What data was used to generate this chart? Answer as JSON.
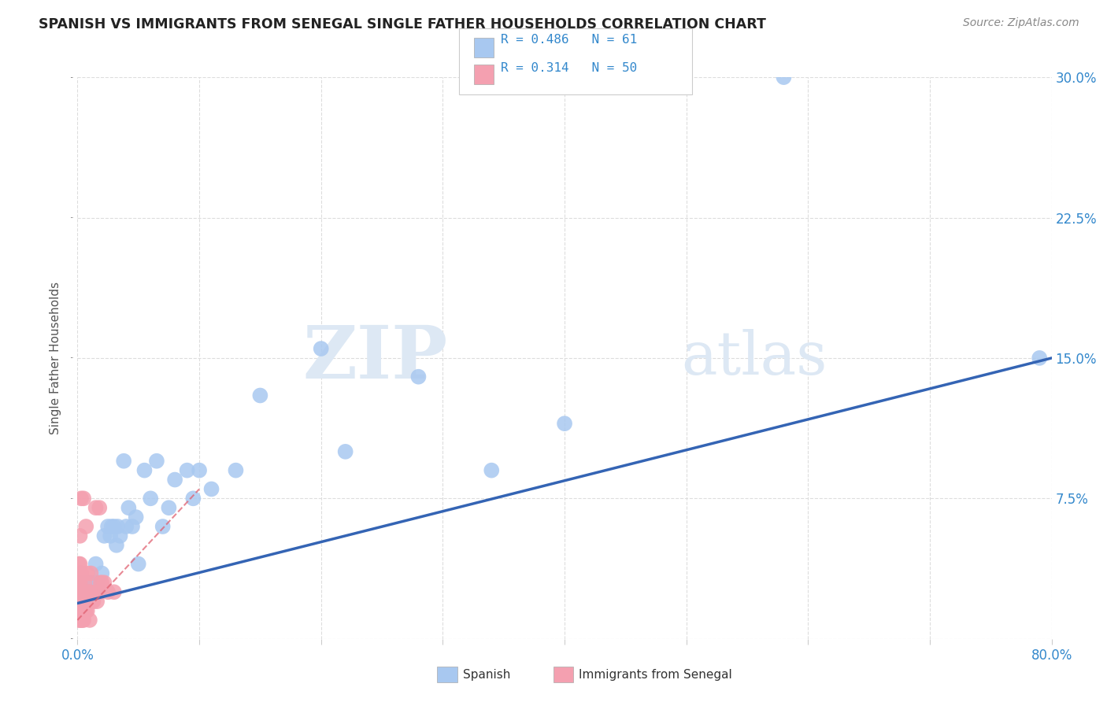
{
  "title": "SPANISH VS IMMIGRANTS FROM SENEGAL SINGLE FATHER HOUSEHOLDS CORRELATION CHART",
  "source": "Source: ZipAtlas.com",
  "ylabel": "Single Father Households",
  "xlim": [
    0.0,
    0.8
  ],
  "ylim": [
    0.0,
    0.3
  ],
  "xticks": [
    0.0,
    0.1,
    0.2,
    0.3,
    0.4,
    0.5,
    0.6,
    0.7,
    0.8
  ],
  "yticks": [
    0.0,
    0.075,
    0.15,
    0.225,
    0.3
  ],
  "xtick_labels": [
    "0.0%",
    "",
    "",
    "",
    "",
    "",
    "",
    "",
    "80.0%"
  ],
  "ytick_labels": [
    "",
    "7.5%",
    "15.0%",
    "22.5%",
    "30.0%"
  ],
  "spanish_R": 0.486,
  "spanish_N": 61,
  "senegal_R": 0.314,
  "senegal_N": 50,
  "spanish_color": "#a8c8f0",
  "senegal_color": "#f4a0b0",
  "spanish_line_color": "#3464b4",
  "senegal_line_color": "#e06070",
  "legend_color_blue": "#3388cc",
  "background_color": "#ffffff",
  "grid_color": "#dddddd",
  "watermark_zip": "ZIP",
  "watermark_atlas": "atlas",
  "spanish_x": [
    0.001,
    0.002,
    0.002,
    0.003,
    0.003,
    0.003,
    0.004,
    0.004,
    0.005,
    0.005,
    0.005,
    0.006,
    0.006,
    0.006,
    0.007,
    0.007,
    0.008,
    0.008,
    0.009,
    0.009,
    0.01,
    0.011,
    0.012,
    0.013,
    0.015,
    0.016,
    0.018,
    0.02,
    0.022,
    0.025,
    0.027,
    0.028,
    0.03,
    0.032,
    0.033,
    0.035,
    0.038,
    0.04,
    0.042,
    0.045,
    0.048,
    0.05,
    0.055,
    0.06,
    0.065,
    0.07,
    0.075,
    0.08,
    0.09,
    0.095,
    0.1,
    0.11,
    0.13,
    0.15,
    0.2,
    0.22,
    0.28,
    0.34,
    0.4,
    0.58,
    0.79
  ],
  "spanish_y": [
    0.02,
    0.02,
    0.025,
    0.02,
    0.03,
    0.03,
    0.025,
    0.03,
    0.02,
    0.025,
    0.025,
    0.02,
    0.025,
    0.03,
    0.025,
    0.03,
    0.025,
    0.03,
    0.025,
    0.03,
    0.025,
    0.025,
    0.03,
    0.025,
    0.04,
    0.03,
    0.025,
    0.035,
    0.055,
    0.06,
    0.055,
    0.06,
    0.06,
    0.05,
    0.06,
    0.055,
    0.095,
    0.06,
    0.07,
    0.06,
    0.065,
    0.04,
    0.09,
    0.075,
    0.095,
    0.06,
    0.07,
    0.085,
    0.09,
    0.075,
    0.09,
    0.08,
    0.09,
    0.13,
    0.155,
    0.1,
    0.14,
    0.09,
    0.115,
    0.3,
    0.15
  ],
  "senegal_x": [
    0.001,
    0.001,
    0.001,
    0.001,
    0.001,
    0.001,
    0.001,
    0.001,
    0.001,
    0.002,
    0.002,
    0.002,
    0.002,
    0.002,
    0.002,
    0.002,
    0.002,
    0.003,
    0.003,
    0.003,
    0.003,
    0.003,
    0.004,
    0.004,
    0.004,
    0.005,
    0.005,
    0.005,
    0.006,
    0.006,
    0.007,
    0.007,
    0.008,
    0.008,
    0.009,
    0.01,
    0.01,
    0.011,
    0.012,
    0.013,
    0.014,
    0.015,
    0.016,
    0.017,
    0.018,
    0.019,
    0.02,
    0.022,
    0.025,
    0.03
  ],
  "senegal_y": [
    0.01,
    0.015,
    0.02,
    0.02,
    0.025,
    0.025,
    0.03,
    0.035,
    0.04,
    0.01,
    0.015,
    0.02,
    0.025,
    0.03,
    0.035,
    0.04,
    0.055,
    0.01,
    0.015,
    0.02,
    0.035,
    0.075,
    0.01,
    0.015,
    0.025,
    0.01,
    0.015,
    0.075,
    0.015,
    0.03,
    0.015,
    0.06,
    0.015,
    0.035,
    0.025,
    0.01,
    0.025,
    0.035,
    0.02,
    0.02,
    0.025,
    0.07,
    0.02,
    0.025,
    0.07,
    0.03,
    0.03,
    0.03,
    0.025,
    0.025
  ],
  "spanish_line_x0": 0.0,
  "spanish_line_y0": 0.019,
  "spanish_line_x1": 0.8,
  "spanish_line_y1": 0.15,
  "senegal_line_x0": 0.0,
  "senegal_line_y0": 0.01,
  "senegal_line_x1": 0.1,
  "senegal_line_y1": 0.08
}
